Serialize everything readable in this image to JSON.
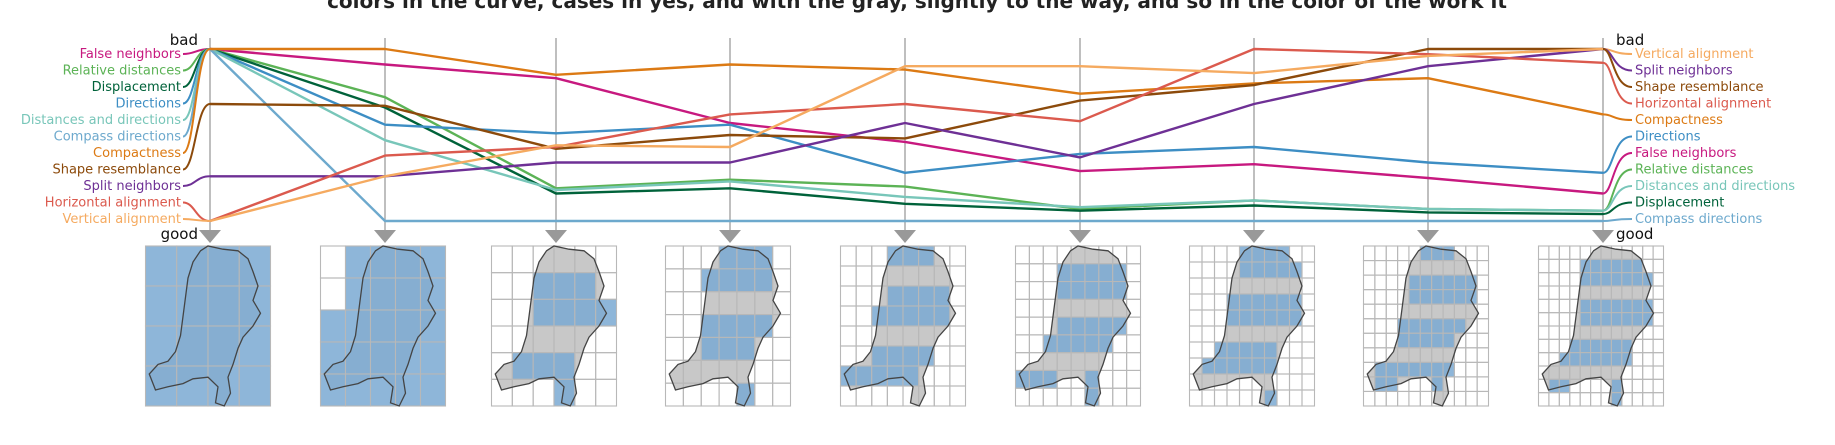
{
  "chart_data": {
    "type": "line",
    "title": "",
    "caption_fragment": "colors in the curve, cases in yes, and with the gray, slightly to the way, and so in the color of the work it",
    "axis_end_labels": {
      "top_left": "bad",
      "bottom_left": "good",
      "top_right": "bad",
      "bottom_right": "good"
    },
    "ylim": [
      0,
      1
    ],
    "axes_count": 9,
    "grid_sizes": [
      4,
      5,
      6,
      7,
      8,
      9,
      10,
      11,
      12
    ],
    "series": [
      {
        "name": "False neighbors",
        "color": "#c7197f",
        "values": [
          0.0,
          0.09,
          0.17,
          0.43,
          0.54,
          0.71,
          0.67,
          0.75,
          0.84
        ]
      },
      {
        "name": "Relative distances",
        "color": "#5cb356",
        "values": [
          0.0,
          0.28,
          0.81,
          0.76,
          0.8,
          0.93,
          0.88,
          0.93,
          0.94
        ]
      },
      {
        "name": "Displacement",
        "color": "#00623a",
        "values": [
          0.0,
          0.34,
          0.84,
          0.81,
          0.9,
          0.94,
          0.91,
          0.95,
          0.96
        ]
      },
      {
        "name": "Directions",
        "color": "#3d8ec4",
        "values": [
          0.0,
          0.44,
          0.49,
          0.44,
          0.72,
          0.61,
          0.57,
          0.66,
          0.72
        ]
      },
      {
        "name": "Distances and directions",
        "color": "#78c6b9",
        "values": [
          0.0,
          0.53,
          0.82,
          0.77,
          0.86,
          0.92,
          0.88,
          0.93,
          0.94
        ]
      },
      {
        "name": "Compass directions",
        "color": "#6da9cd",
        "values": [
          0.0,
          1.0,
          1.0,
          1.0,
          1.0,
          1.0,
          1.0,
          1.0,
          1.0
        ]
      },
      {
        "name": "Compactness",
        "color": "#dc7a14",
        "values": [
          0.0,
          0.0,
          0.15,
          0.09,
          0.12,
          0.26,
          0.2,
          0.17,
          0.38
        ]
      },
      {
        "name": "Shape resemblance",
        "color": "#8c4a0b",
        "values": [
          0.32,
          0.33,
          0.58,
          0.5,
          0.52,
          0.3,
          0.21,
          0.0,
          0.0
        ]
      },
      {
        "name": "Split neighbors",
        "color": "#6e3095",
        "values": [
          0.74,
          0.74,
          0.66,
          0.66,
          0.43,
          0.63,
          0.32,
          0.1,
          0.0
        ]
      },
      {
        "name": "Horizontal alignment",
        "color": "#db5a4e",
        "values": [
          1.0,
          0.62,
          0.57,
          0.38,
          0.32,
          0.42,
          0.0,
          0.03,
          0.08
        ]
      },
      {
        "name": "Vertical alignment",
        "color": "#f5aa60",
        "values": [
          1.0,
          0.74,
          0.56,
          0.57,
          0.1,
          0.1,
          0.14,
          0.04,
          0.0
        ]
      }
    ],
    "right_order": [
      "Vertical alignment",
      "Split neighbors",
      "Shape resemblance",
      "Horizontal alignment",
      "Compactness",
      "Directions",
      "False neighbors",
      "Relative distances",
      "Distances and directions",
      "Displacement",
      "Compass directions"
    ],
    "colors": {
      "axis": "#aaaaaa",
      "map_fill": "#c8c8c8",
      "cell_fill": "#7aa9d2",
      "cell_stroke": "#b8b8b8"
    }
  }
}
